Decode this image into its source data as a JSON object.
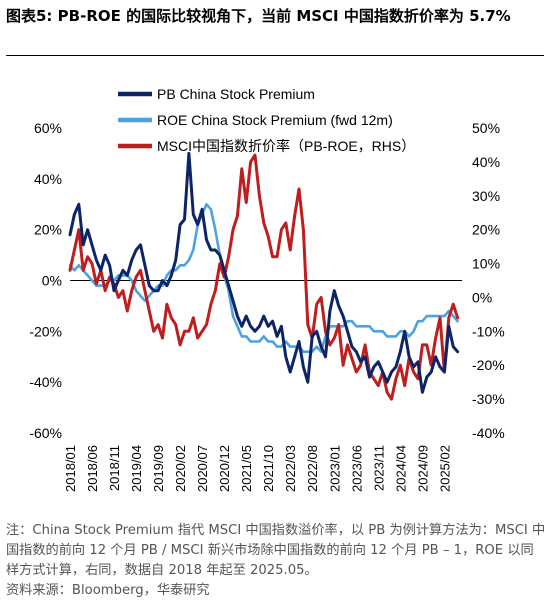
{
  "figure": {
    "label": "图表5:",
    "title": "PB-ROE 的国际比较视角下，当前 MSCI 中国指数折价率为 5.7%"
  },
  "notes": {
    "note": "注：China Stock Premium 指代 MSCI 中国指数溢价率，以 PB 为例计算方法为：MSCI 中国指数的前向 12 个月 PB / MSCI 新兴市场除中国指数的前向 12 个月 PB – 1，ROE 以同样方式计算，右同，数据自 2018 年起至 2025.05。",
    "source": "资料来源：Bloomberg，华泰研究"
  },
  "colors": {
    "pb": "#0d2466",
    "roe": "#4da3e2",
    "msci": "#bf1e1e",
    "zero_line": "#000000"
  },
  "chart_data": {
    "type": "line",
    "title": "",
    "x_tick_labels": [
      "2018/01",
      "2018/06",
      "2018/11",
      "2019/04",
      "2019/09",
      "2020/02",
      "2020/07",
      "2020/12",
      "2021/05",
      "2021/10",
      "2022/03",
      "2022/08",
      "2023/01",
      "2023/06",
      "2023/11",
      "2024/04",
      "2024/09",
      "2025/02"
    ],
    "x_tick_months": [
      0,
      5,
      10,
      15,
      20,
      25,
      30,
      35,
      40,
      45,
      50,
      55,
      60,
      65,
      70,
      75,
      80,
      85
    ],
    "x_range_months": [
      0,
      89
    ],
    "y_left": {
      "min": -60,
      "max": 60,
      "ticks": [
        -60,
        -40,
        -20,
        0,
        20,
        40,
        60
      ],
      "tick_labels": [
        "-60%",
        "-40%",
        "-20%",
        "0%",
        "20%",
        "40%",
        "60%"
      ]
    },
    "y_right": {
      "min": -40,
      "max": 50,
      "ticks": [
        -40,
        -30,
        -20,
        -10,
        0,
        10,
        20,
        30,
        40,
        50
      ],
      "tick_labels": [
        "-40%",
        "-30%",
        "-20%",
        "-10%",
        "0%",
        "10%",
        "20%",
        "30%",
        "40%",
        "50%"
      ]
    },
    "legend_position": "top-center",
    "series": [
      {
        "name": "PB China Stock Premium",
        "axis": "left",
        "color": "#0d2466",
        "points": [
          [
            0,
            18
          ],
          [
            1,
            26
          ],
          [
            2,
            30
          ],
          [
            3,
            14
          ],
          [
            4,
            20
          ],
          [
            5,
            14
          ],
          [
            6,
            8
          ],
          [
            7,
            4
          ],
          [
            8,
            10
          ],
          [
            9,
            6
          ],
          [
            10,
            -4
          ],
          [
            11,
            0
          ],
          [
            12,
            4
          ],
          [
            13,
            2
          ],
          [
            14,
            8
          ],
          [
            15,
            12
          ],
          [
            16,
            14
          ],
          [
            17,
            6
          ],
          [
            18,
            -2
          ],
          [
            19,
            -4
          ],
          [
            20,
            -4
          ],
          [
            21,
            0
          ],
          [
            22,
            -2
          ],
          [
            23,
            2
          ],
          [
            24,
            8
          ],
          [
            25,
            22
          ],
          [
            26,
            24
          ],
          [
            27,
            50
          ],
          [
            28,
            26
          ],
          [
            29,
            22
          ],
          [
            30,
            28
          ],
          [
            31,
            16
          ],
          [
            32,
            12
          ],
          [
            33,
            12
          ],
          [
            34,
            10
          ],
          [
            35,
            4
          ],
          [
            36,
            -2
          ],
          [
            37,
            -8
          ],
          [
            38,
            -14
          ],
          [
            39,
            -18
          ],
          [
            40,
            -14
          ],
          [
            41,
            -18
          ],
          [
            42,
            -20
          ],
          [
            43,
            -18
          ],
          [
            44,
            -14
          ],
          [
            45,
            -18
          ],
          [
            46,
            -16
          ],
          [
            47,
            -22
          ],
          [
            48,
            -18
          ],
          [
            49,
            -30
          ],
          [
            50,
            -36
          ],
          [
            51,
            -30
          ],
          [
            52,
            -24
          ],
          [
            53,
            -34
          ],
          [
            54,
            -40
          ],
          [
            55,
            -22
          ],
          [
            56,
            -20
          ],
          [
            57,
            -26
          ],
          [
            58,
            -30
          ],
          [
            59,
            -12
          ],
          [
            60,
            -4
          ],
          [
            61,
            -10
          ],
          [
            62,
            -14
          ],
          [
            63,
            -20
          ],
          [
            64,
            -26
          ],
          [
            65,
            -28
          ],
          [
            66,
            -32
          ],
          [
            67,
            -30
          ],
          [
            68,
            -38
          ],
          [
            69,
            -34
          ],
          [
            70,
            -32
          ],
          [
            71,
            -36
          ],
          [
            72,
            -40
          ],
          [
            73,
            -36
          ],
          [
            74,
            -34
          ],
          [
            75,
            -28
          ],
          [
            76,
            -20
          ],
          [
            77,
            -30
          ],
          [
            78,
            -34
          ],
          [
            79,
            -32
          ],
          [
            80,
            -44
          ],
          [
            81,
            -38
          ],
          [
            82,
            -36
          ],
          [
            83,
            -30
          ],
          [
            84,
            -34
          ],
          [
            85,
            -36
          ],
          [
            86,
            -18
          ],
          [
            87,
            -26
          ],
          [
            88,
            -28
          ]
        ]
      },
      {
        "name": "ROE China Stock Premium (fwd 12m)",
        "axis": "left",
        "color": "#4da3e2",
        "points": [
          [
            0,
            6
          ],
          [
            1,
            4
          ],
          [
            2,
            6
          ],
          [
            3,
            4
          ],
          [
            4,
            2
          ],
          [
            5,
            0
          ],
          [
            6,
            -2
          ],
          [
            7,
            -2
          ],
          [
            8,
            -2
          ],
          [
            9,
            0
          ],
          [
            10,
            0
          ],
          [
            11,
            2
          ],
          [
            12,
            2
          ],
          [
            13,
            2
          ],
          [
            14,
            0
          ],
          [
            15,
            -4
          ],
          [
            16,
            -6
          ],
          [
            17,
            -8
          ],
          [
            18,
            -6
          ],
          [
            19,
            -4
          ],
          [
            20,
            -2
          ],
          [
            21,
            -2
          ],
          [
            22,
            2
          ],
          [
            23,
            4
          ],
          [
            24,
            4
          ],
          [
            25,
            6
          ],
          [
            26,
            6
          ],
          [
            27,
            8
          ],
          [
            28,
            12
          ],
          [
            29,
            22
          ],
          [
            30,
            26
          ],
          [
            31,
            30
          ],
          [
            32,
            28
          ],
          [
            33,
            20
          ],
          [
            34,
            10
          ],
          [
            35,
            2
          ],
          [
            36,
            -4
          ],
          [
            37,
            -14
          ],
          [
            38,
            -18
          ],
          [
            39,
            -22
          ],
          [
            40,
            -22
          ],
          [
            41,
            -24
          ],
          [
            42,
            -24
          ],
          [
            43,
            -24
          ],
          [
            44,
            -22
          ],
          [
            45,
            -24
          ],
          [
            46,
            -24
          ],
          [
            47,
            -26
          ],
          [
            48,
            -26
          ],
          [
            49,
            -24
          ],
          [
            50,
            -26
          ],
          [
            51,
            -26
          ],
          [
            52,
            -26
          ],
          [
            53,
            -28
          ],
          [
            54,
            -28
          ],
          [
            55,
            -28
          ],
          [
            56,
            -26
          ],
          [
            57,
            -28
          ],
          [
            58,
            -22
          ],
          [
            59,
            -18
          ],
          [
            60,
            -18
          ],
          [
            61,
            -18
          ],
          [
            62,
            -18
          ],
          [
            63,
            -16
          ],
          [
            64,
            -16
          ],
          [
            65,
            -18
          ],
          [
            66,
            -18
          ],
          [
            67,
            -18
          ],
          [
            68,
            -18
          ],
          [
            69,
            -20
          ],
          [
            70,
            -20
          ],
          [
            71,
            -20
          ],
          [
            72,
            -22
          ],
          [
            73,
            -22
          ],
          [
            74,
            -22
          ],
          [
            75,
            -20
          ],
          [
            76,
            -20
          ],
          [
            77,
            -22
          ],
          [
            78,
            -20
          ],
          [
            79,
            -16
          ],
          [
            80,
            -16
          ],
          [
            81,
            -14
          ],
          [
            82,
            -14
          ],
          [
            83,
            -14
          ],
          [
            84,
            -14
          ],
          [
            85,
            -14
          ],
          [
            86,
            -12
          ],
          [
            87,
            -14
          ],
          [
            88,
            -16
          ]
        ]
      },
      {
        "name": "MSCI中国指数折价率（PB-ROE，RHS）",
        "axis": "right",
        "color": "#bf1e1e",
        "points": [
          [
            0,
            8
          ],
          [
            1,
            14
          ],
          [
            2,
            20
          ],
          [
            3,
            8
          ],
          [
            4,
            12
          ],
          [
            5,
            10
          ],
          [
            6,
            4
          ],
          [
            7,
            8
          ],
          [
            8,
            2
          ],
          [
            9,
            6
          ],
          [
            10,
            4
          ],
          [
            11,
            0
          ],
          [
            12,
            2
          ],
          [
            13,
            -4
          ],
          [
            14,
            2
          ],
          [
            15,
            6
          ],
          [
            16,
            8
          ],
          [
            17,
            2
          ],
          [
            18,
            -4
          ],
          [
            19,
            -10
          ],
          [
            20,
            -8
          ],
          [
            21,
            -12
          ],
          [
            22,
            -2
          ],
          [
            23,
            -6
          ],
          [
            24,
            -8
          ],
          [
            25,
            -14
          ],
          [
            26,
            -10
          ],
          [
            27,
            -10
          ],
          [
            28,
            -6
          ],
          [
            29,
            -12
          ],
          [
            30,
            -10
          ],
          [
            31,
            -8
          ],
          [
            32,
            -2
          ],
          [
            33,
            2
          ],
          [
            34,
            10
          ],
          [
            35,
            6
          ],
          [
            36,
            12
          ],
          [
            37,
            20
          ],
          [
            38,
            24
          ],
          [
            39,
            38
          ],
          [
            40,
            28
          ],
          [
            41,
            40
          ],
          [
            42,
            42
          ],
          [
            43,
            30
          ],
          [
            44,
            22
          ],
          [
            45,
            18
          ],
          [
            46,
            12
          ],
          [
            47,
            12
          ],
          [
            48,
            20
          ],
          [
            49,
            22
          ],
          [
            50,
            14
          ],
          [
            51,
            24
          ],
          [
            52,
            32
          ],
          [
            53,
            20
          ],
          [
            54,
            -8
          ],
          [
            55,
            -12
          ],
          [
            56,
            -2
          ],
          [
            57,
            0
          ],
          [
            58,
            -10
          ],
          [
            59,
            -14
          ],
          [
            60,
            -12
          ],
          [
            61,
            -8
          ],
          [
            62,
            -20
          ],
          [
            63,
            -14
          ],
          [
            64,
            -18
          ],
          [
            65,
            -22
          ],
          [
            66,
            -20
          ],
          [
            67,
            -14
          ],
          [
            68,
            -22
          ],
          [
            69,
            -24
          ],
          [
            70,
            -26
          ],
          [
            71,
            -22
          ],
          [
            72,
            -28
          ],
          [
            73,
            -30
          ],
          [
            74,
            -24
          ],
          [
            75,
            -20
          ],
          [
            76,
            -26
          ],
          [
            77,
            -18
          ],
          [
            78,
            -22
          ],
          [
            79,
            -24
          ],
          [
            80,
            -14
          ],
          [
            81,
            -14
          ],
          [
            82,
            -20
          ],
          [
            83,
            -12
          ],
          [
            84,
            -6
          ],
          [
            85,
            -22
          ],
          [
            86,
            -6
          ],
          [
            87,
            -2
          ],
          [
            88,
            -6
          ]
        ]
      }
    ]
  }
}
